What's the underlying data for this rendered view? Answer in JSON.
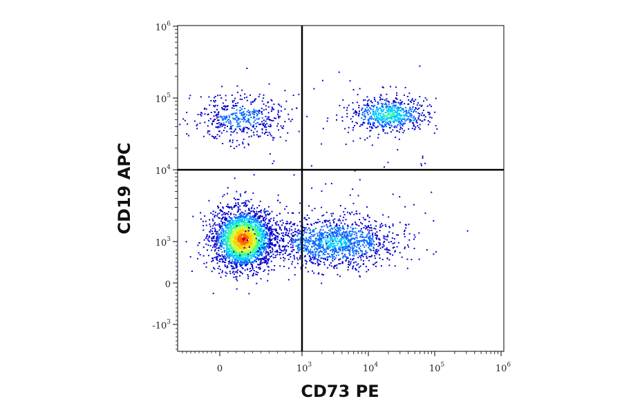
{
  "chart_data": {
    "type": "scatter",
    "subtype": "flow-cytometry-density-dot-plot",
    "xlabel": "CD73 PE",
    "ylabel": "CD19 APC",
    "x_scale": "biexponential",
    "y_scale": "biexponential",
    "xlim": [
      -1000,
      1000000
    ],
    "ylim": [
      -3000,
      1000000
    ],
    "x_ticks": [
      {
        "value": 0,
        "base": "0",
        "exp": ""
      },
      {
        "value": 1000,
        "base": "10",
        "exp": "3"
      },
      {
        "value": 10000,
        "base": "10",
        "exp": "4"
      },
      {
        "value": 100000,
        "base": "10",
        "exp": "5"
      },
      {
        "value": 1000000,
        "base": "10",
        "exp": "6"
      }
    ],
    "y_ticks": [
      {
        "value": -1000,
        "base": "-10",
        "exp": "3"
      },
      {
        "value": 0,
        "base": "0",
        "exp": ""
      },
      {
        "value": 1000,
        "base": "10",
        "exp": "3"
      },
      {
        "value": 10000,
        "base": "10",
        "exp": "4"
      },
      {
        "value": 100000,
        "base": "10",
        "exp": "5"
      },
      {
        "value": 1000000,
        "base": "10",
        "exp": "6"
      }
    ],
    "quadrant_gates": {
      "x": 1000,
      "y": 10000
    },
    "populations": [
      {
        "x": 280,
        "y": 1100,
        "density": "very high"
      },
      {
        "x": 3000,
        "y": 1000,
        "density": "medium"
      },
      {
        "x": 20000,
        "y": 60000,
        "density": "high"
      },
      {
        "x": 250,
        "y": 55000,
        "density": "low"
      }
    ],
    "color_scale": [
      "#0000cc",
      "#0066ff",
      "#00ccff",
      "#33ff99",
      "#ccff33",
      "#ffcc00",
      "#ff6600",
      "#dd0000"
    ],
    "grid": false,
    "legend": "none"
  }
}
